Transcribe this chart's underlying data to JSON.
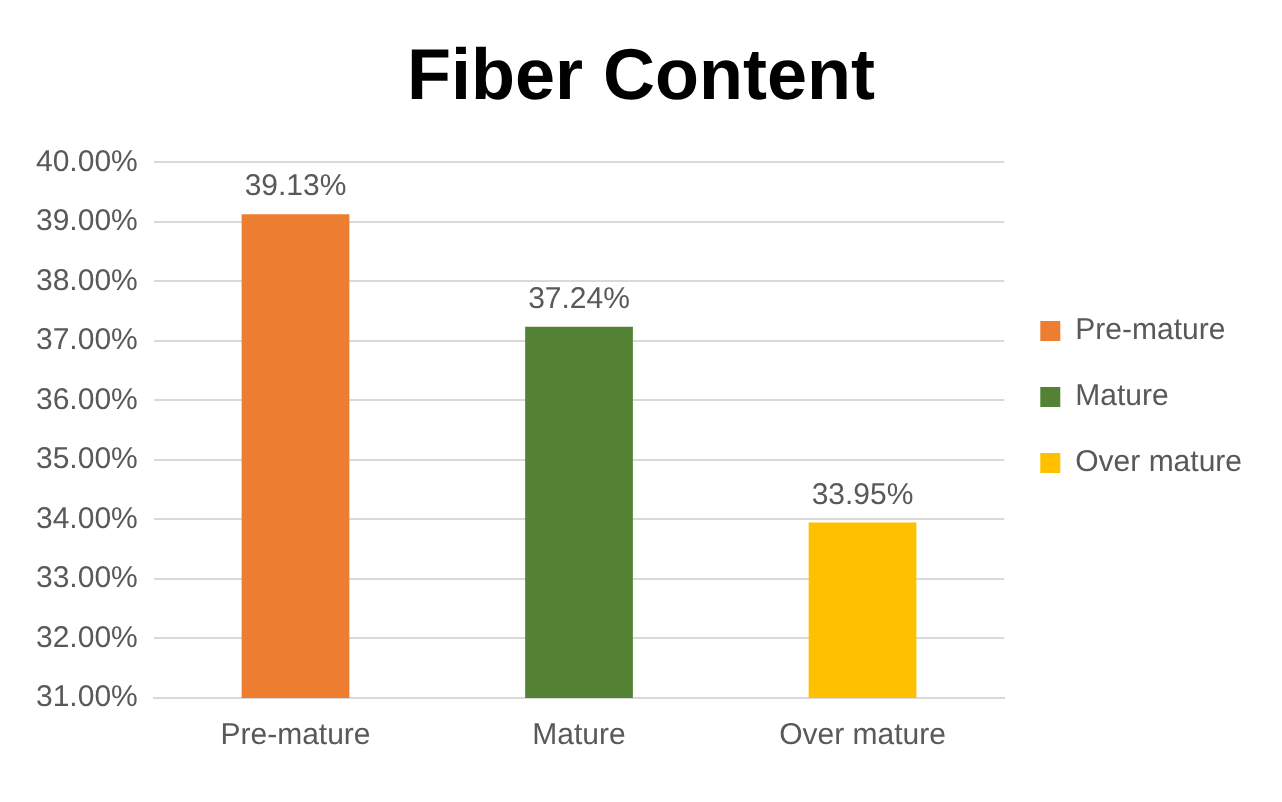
{
  "chart_data": {
    "type": "bar",
    "title": "Fiber Content",
    "categories": [
      "Pre-mature",
      "Mature",
      "Over mature"
    ],
    "series": [
      {
        "name": "Pre-mature",
        "color": "#ed7d31",
        "values": [
          39.13,
          null,
          null
        ],
        "value_labels": [
          "39.13%",
          null,
          null
        ]
      },
      {
        "name": "Mature",
        "color": "#548235",
        "values": [
          null,
          37.24,
          null
        ],
        "value_labels": [
          null,
          "37.24%",
          null
        ]
      },
      {
        "name": "Over mature",
        "color": "#ffc000",
        "values": [
          null,
          null,
          33.95
        ],
        "value_labels": [
          null,
          null,
          "33.95%"
        ]
      }
    ],
    "ylim": [
      31,
      40
    ],
    "yticks": [
      {
        "value": 31,
        "label": "31.00%"
      },
      {
        "value": 32,
        "label": "32.00%"
      },
      {
        "value": 33,
        "label": "33.00%"
      },
      {
        "value": 34,
        "label": "34.00%"
      },
      {
        "value": 35,
        "label": "35.00%"
      },
      {
        "value": 36,
        "label": "36.00%"
      },
      {
        "value": 37,
        "label": "37.00%"
      },
      {
        "value": 38,
        "label": "38.00%"
      },
      {
        "value": 39,
        "label": "39.00%"
      },
      {
        "value": 40,
        "label": "40.00%"
      }
    ],
    "grid": "y",
    "legend": "right"
  }
}
